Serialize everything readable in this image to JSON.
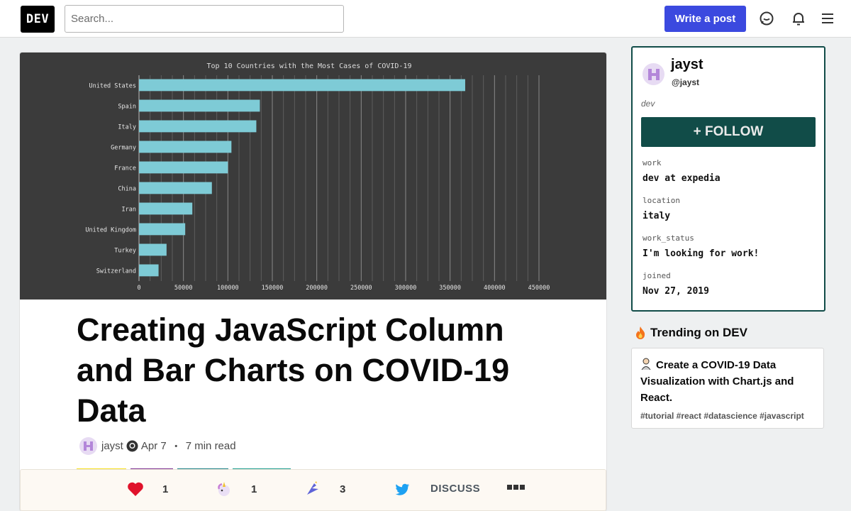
{
  "header": {
    "logo_text": "DEV",
    "search_placeholder": "Search...",
    "write_post_label": "Write a post",
    "icons": [
      "chat-icon",
      "bell-icon",
      "menu-icon"
    ]
  },
  "article": {
    "title": "Creating JavaScript Column and Bar Charts on COVID-19 Data",
    "author": "jayst",
    "date": "Apr 7",
    "read_time": "7 min read",
    "tag_colors": [
      "#f7df1e",
      "#61dafb",
      "#00758f",
      "#1a9c8c"
    ]
  },
  "reactions": {
    "heart_count": "1",
    "unicorn_count": "1",
    "saved_count": "3",
    "discuss_label": "DISCUSS"
  },
  "profile": {
    "name": "jayst",
    "handle": "@jayst",
    "summary": "dev",
    "follow_label": "+ FOLLOW",
    "fields": [
      {
        "key": "work",
        "value": "dev at expedia"
      },
      {
        "key": "location",
        "value": "italy"
      },
      {
        "key": "work_status",
        "value": "I'm looking for work!"
      },
      {
        "key": "joined",
        "value": "Nov 27, 2019"
      }
    ]
  },
  "trending": {
    "heading": "Trending on DEV",
    "item_title": "Create a COVID-19 Data Visualization with Chart.js and React.",
    "item_tags": "#tutorial #react #datascience #javascript"
  },
  "chart_data": {
    "type": "bar",
    "title": "Top 10 Countries with the Most Cases of COVID-19",
    "orientation": "horizontal",
    "categories": [
      "United States",
      "Spain",
      "Italy",
      "Germany",
      "France",
      "China",
      "Iran",
      "United Kingdom",
      "Turkey",
      "Switzerland"
    ],
    "values": [
      367000,
      136000,
      132000,
      104000,
      100000,
      82000,
      60000,
      52000,
      31000,
      22000
    ],
    "xticks": [
      "0",
      "50000",
      "100000",
      "150000",
      "200000",
      "250000",
      "300000",
      "350000",
      "400000",
      "450000"
    ],
    "xlim": [
      0,
      450000
    ],
    "bar_color": "#7ecbd6",
    "background": "#3b3b3b",
    "grid": true
  }
}
